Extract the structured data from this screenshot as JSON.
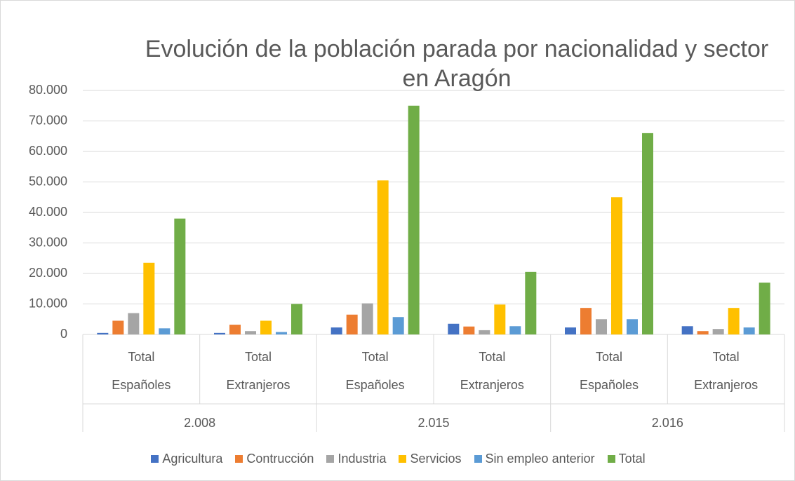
{
  "chart_data": {
    "type": "bar",
    "title": "Evolución de la población parada por nacionalidad y sector en Aragón",
    "categories": [
      "Total Españoles",
      "Total Extranjeros",
      "Total Españoles",
      "Total Extranjeros",
      "Total Españoles",
      "Total Extranjeros"
    ],
    "group_labels": [
      "2.008",
      "2.015",
      "2.016"
    ],
    "series": [
      {
        "name": "Agricultura",
        "color": "#4472c4",
        "values": [
          500,
          500,
          2300,
          3500,
          2300,
          2700
        ]
      },
      {
        "name": "Contrucción",
        "color": "#ed7d31",
        "values": [
          4500,
          3200,
          6500,
          2600,
          8700,
          1100
        ]
      },
      {
        "name": "Industria",
        "color": "#a5a5a5",
        "values": [
          7000,
          1100,
          10200,
          1400,
          5000,
          1800
        ]
      },
      {
        "name": "Servicios",
        "color": "#ffc000",
        "values": [
          23500,
          4500,
          50500,
          9800,
          45000,
          8700
        ]
      },
      {
        "name": "Sin empleo anterior",
        "color": "#5b9bd5",
        "values": [
          2000,
          800,
          5700,
          2700,
          5000,
          2300
        ]
      },
      {
        "name": "Total",
        "color": "#70ad47",
        "values": [
          38000,
          10000,
          75000,
          20500,
          66000,
          17000
        ]
      }
    ],
    "ylim": [
      0,
      80000
    ],
    "yticks": [
      0,
      {
        "value": 10000,
        "label": "10.000"
      },
      {
        "value": 20000,
        "label": "20.000"
      },
      {
        "value": 30000,
        "label": "30.000"
      },
      {
        "value": 40000,
        "label": "40.000"
      },
      {
        "value": 50000,
        "label": "50.000"
      },
      {
        "value": 60000,
        "label": "60.000"
      },
      {
        "value": 70000,
        "label": "70.000"
      },
      {
        "value": 80000,
        "label": "80.000"
      }
    ],
    "grid": true,
    "legend": "bottom"
  }
}
